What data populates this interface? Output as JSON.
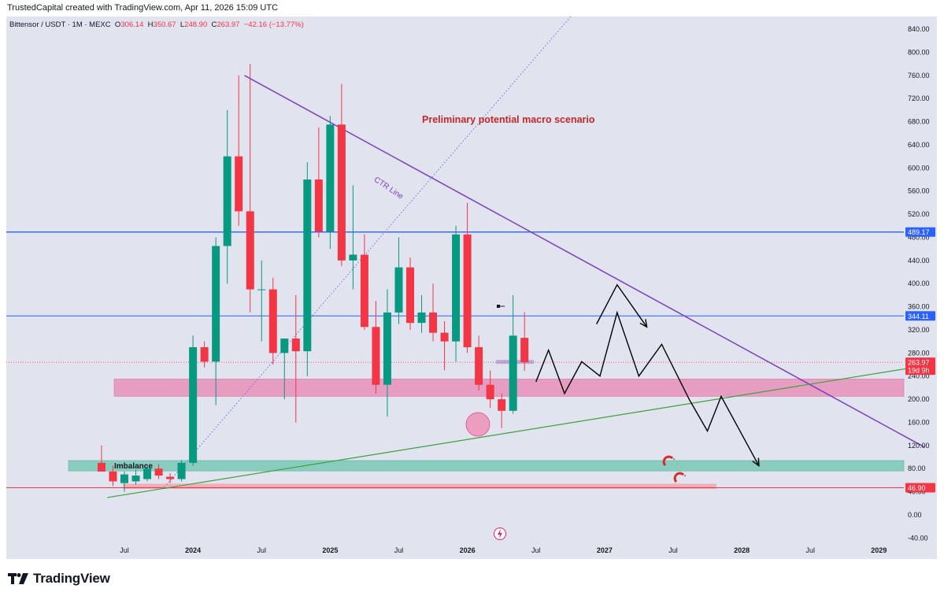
{
  "header": {
    "text": "TrustedCapital created with TradingView.com, Apr 11, 2026 15:09 UTC"
  },
  "legend": {
    "symbol": "Bittensor / USDT · 1M · MEXC",
    "o_label": "O",
    "o_value": "306.14",
    "h_label": "H",
    "h_value": "350.67",
    "l_label": "L",
    "l_value": "248.90",
    "c_label": "C",
    "c_value": "263.97",
    "change": "−42.16 (−13.77%)"
  },
  "footer": {
    "brand": "TradingView"
  },
  "colors": {
    "up": "#089981",
    "down": "#f23645",
    "background": "#e1e3ef",
    "ctr_line": "#7b3fbf",
    "support_line": "#3ba23a",
    "hline": "#2962ff",
    "pink_zone": "#e891b8",
    "teal_zone": "#7fc9b7"
  },
  "chart_data": {
    "type": "candlestick",
    "title": "Preliminary potential macro scenario",
    "symbol": "Bittensor / USDT",
    "interval": "1M",
    "exchange": "MEXC",
    "y_axis": {
      "ylim": [
        -40,
        860
      ],
      "ticks": [
        "840.00",
        "800.00",
        "760.00",
        "720.00",
        "680.00",
        "640.00",
        "600.00",
        "560.00",
        "520.00",
        "480.00",
        "440.00",
        "400.00",
        "360.00",
        "320.00",
        "280.00",
        "240.00",
        "200.00",
        "160.00",
        "120.00",
        "80.00",
        "40.00",
        "0.00",
        "-40.00"
      ]
    },
    "x_axis": {
      "ticks": [
        {
          "label": "Jul",
          "m": 0,
          "bold": false
        },
        {
          "label": "2024",
          "m": 6,
          "bold": true
        },
        {
          "label": "Jul",
          "m": 12,
          "bold": false
        },
        {
          "label": "2025",
          "m": 18,
          "bold": true
        },
        {
          "label": "Jul",
          "m": 24,
          "bold": false
        },
        {
          "label": "2026",
          "m": 30,
          "bold": true
        },
        {
          "label": "Jul",
          "m": 36,
          "bold": false
        },
        {
          "label": "2027",
          "m": 42,
          "bold": true
        },
        {
          "label": "Jul",
          "m": 48,
          "bold": false
        },
        {
          "label": "2028",
          "m": 54,
          "bold": true
        },
        {
          "label": "Jul",
          "m": 60,
          "bold": false
        },
        {
          "label": "2029",
          "m": 66,
          "bold": true
        }
      ]
    },
    "candles": [
      {
        "m": -2,
        "o": 90,
        "h": 120,
        "l": 75,
        "c": 75
      },
      {
        "m": -1,
        "o": 75,
        "h": 85,
        "l": 50,
        "c": 58
      },
      {
        "m": 0,
        "o": 55,
        "h": 75,
        "l": 40,
        "c": 70
      },
      {
        "m": 1,
        "o": 58,
        "h": 78,
        "l": 52,
        "c": 68
      },
      {
        "m": 2,
        "o": 62,
        "h": 85,
        "l": 58,
        "c": 80
      },
      {
        "m": 3,
        "o": 80,
        "h": 88,
        "l": 62,
        "c": 68
      },
      {
        "m": 4,
        "o": 66,
        "h": 72,
        "l": 55,
        "c": 62
      },
      {
        "m": 5,
        "o": 62,
        "h": 95,
        "l": 58,
        "c": 90
      },
      {
        "m": 6,
        "o": 90,
        "h": 310,
        "l": 85,
        "c": 290
      },
      {
        "m": 7,
        "o": 290,
        "h": 300,
        "l": 255,
        "c": 265
      },
      {
        "m": 8,
        "o": 265,
        "h": 480,
        "l": 190,
        "c": 465
      },
      {
        "m": 9,
        "o": 465,
        "h": 700,
        "l": 400,
        "c": 620
      },
      {
        "m": 10,
        "o": 620,
        "h": 760,
        "l": 500,
        "c": 525
      },
      {
        "m": 11,
        "o": 525,
        "h": 780,
        "l": 350,
        "c": 390
      },
      {
        "m": 12,
        "o": 390,
        "h": 440,
        "l": 300,
        "c": 390
      },
      {
        "m": 13,
        "o": 390,
        "h": 410,
        "l": 260,
        "c": 280
      },
      {
        "m": 14,
        "o": 280,
        "h": 300,
        "l": 200,
        "c": 305
      },
      {
        "m": 15,
        "o": 305,
        "h": 380,
        "l": 160,
        "c": 283
      },
      {
        "m": 16,
        "o": 283,
        "h": 610,
        "l": 240,
        "c": 580
      },
      {
        "m": 17,
        "o": 580,
        "h": 670,
        "l": 480,
        "c": 490
      },
      {
        "m": 18,
        "o": 490,
        "h": 690,
        "l": 460,
        "c": 675
      },
      {
        "m": 19,
        "o": 675,
        "h": 745,
        "l": 430,
        "c": 440
      },
      {
        "m": 20,
        "o": 440,
        "h": 570,
        "l": 390,
        "c": 450
      },
      {
        "m": 21,
        "o": 450,
        "h": 485,
        "l": 320,
        "c": 325
      },
      {
        "m": 22,
        "o": 325,
        "h": 370,
        "l": 210,
        "c": 225
      },
      {
        "m": 23,
        "o": 225,
        "h": 390,
        "l": 170,
        "c": 350
      },
      {
        "m": 24,
        "o": 350,
        "h": 480,
        "l": 330,
        "c": 428
      },
      {
        "m": 25,
        "o": 428,
        "h": 445,
        "l": 320,
        "c": 332
      },
      {
        "m": 26,
        "o": 332,
        "h": 380,
        "l": 315,
        "c": 350
      },
      {
        "m": 27,
        "o": 350,
        "h": 400,
        "l": 300,
        "c": 315
      },
      {
        "m": 28,
        "o": 315,
        "h": 335,
        "l": 250,
        "c": 300
      },
      {
        "m": 29,
        "o": 300,
        "h": 500,
        "l": 265,
        "c": 485
      },
      {
        "m": 30,
        "o": 485,
        "h": 540,
        "l": 280,
        "c": 290
      },
      {
        "m": 31,
        "o": 290,
        "h": 310,
        "l": 215,
        "c": 225
      },
      {
        "m": 32,
        "o": 225,
        "h": 250,
        "l": 185,
        "c": 200
      },
      {
        "m": 33,
        "o": 200,
        "h": 210,
        "l": 150,
        "c": 180
      },
      {
        "m": 34,
        "o": 180,
        "h": 380,
        "l": 175,
        "c": 310
      },
      {
        "m": 35,
        "o": 306.14,
        "h": 350.67,
        "l": 248.9,
        "c": 263.97
      }
    ],
    "horizontal_lines": [
      {
        "price": 489.17,
        "label": "489.17"
      },
      {
        "price": 344.11,
        "label": "344.11"
      },
      {
        "price": 46.9,
        "label": "46.90"
      }
    ],
    "current_price": {
      "label": "263.97",
      "countdown": "19d 9h"
    },
    "zones": [
      {
        "name": "pink-zone",
        "low": 205,
        "high": 235
      },
      {
        "name": "imbalance-zone",
        "low": 76,
        "high": 94,
        "label": "Imbalance"
      },
      {
        "name": "lower-red-zone",
        "low": 45,
        "high": 54
      }
    ],
    "trendlines": [
      {
        "name": "ctr-line",
        "label": "CTR Line",
        "from": {
          "m": 10.5,
          "p": 760
        },
        "to": {
          "m": 70,
          "p": 117
        }
      },
      {
        "name": "support-line",
        "from": {
          "m": -1.5,
          "p": 30
        },
        "to": {
          "m": 70,
          "p": 258
        }
      },
      {
        "name": "dotted-diagonal",
        "from": {
          "m": 3.5,
          "p": 48
        },
        "to": {
          "m": 56,
          "p": 1250
        }
      }
    ],
    "projection_path": [
      {
        "m": 36,
        "p": 230
      },
      {
        "m": 37.1,
        "p": 285
      },
      {
        "m": 38.5,
        "p": 210
      },
      {
        "m": 40,
        "p": 265
      },
      {
        "m": 41.6,
        "p": 240
      },
      {
        "m": 43.1,
        "p": 350
      },
      {
        "m": 45,
        "p": 240
      },
      {
        "m": 47,
        "p": 295
      },
      {
        "m": 49.4,
        "p": 200
      },
      {
        "m": 51,
        "p": 145
      },
      {
        "m": 52.2,
        "p": 205
      },
      {
        "m": 55.5,
        "p": 85
      }
    ],
    "projection_branch": [
      {
        "m": 41.3,
        "p": 330
      },
      {
        "m": 43.1,
        "p": 398
      },
      {
        "m": 45.7,
        "p": 325
      }
    ]
  }
}
